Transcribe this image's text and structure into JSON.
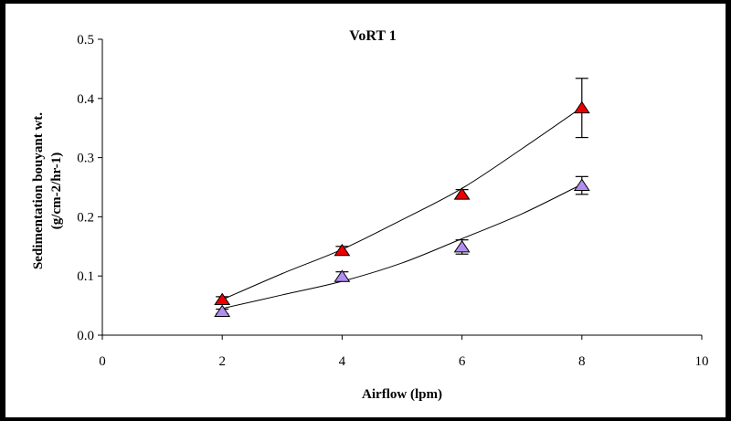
{
  "chart_data": {
    "type": "scatter",
    "title": "VoRT 1",
    "xlabel": "Airflow (lpm)",
    "ylabel_line1": "Sedimentation bouyant wt.",
    "ylabel_line2": "(g/cm-2/hr-1)",
    "xlim": [
      0,
      10
    ],
    "ylim": [
      0,
      0.5
    ],
    "x_ticks": [
      0,
      2,
      4,
      6,
      8,
      10
    ],
    "x_tick_labels": [
      "0",
      "2",
      "4",
      "6",
      "8",
      "10"
    ],
    "y_ticks": [
      0,
      0.1,
      0.2,
      0.3,
      0.4,
      0.5
    ],
    "y_tick_labels": [
      "0.0",
      "0.1",
      "0.2",
      "0.3",
      "0.4",
      "0.5"
    ],
    "grid": false,
    "legend": "none",
    "marker": "triangle",
    "series": [
      {
        "color": "#ee0000",
        "x": [
          2,
          4,
          6,
          8
        ],
        "y": [
          0.06,
          0.143,
          0.238,
          0.384
        ],
        "err": [
          0.005,
          0.007,
          0.008,
          0.05
        ],
        "fit": [
          0.06,
          0.104,
          0.145,
          0.195,
          0.248,
          0.315,
          0.385
        ]
      },
      {
        "color": "#b28ef0",
        "x": [
          2,
          4,
          6,
          8
        ],
        "y": [
          0.04,
          0.099,
          0.149,
          0.253
        ],
        "err": [
          0.004,
          0.008,
          0.012,
          0.015
        ],
        "fit": [
          0.045,
          0.068,
          0.091,
          0.122,
          0.163,
          0.205,
          0.255
        ]
      }
    ],
    "fit_x": [
      2,
      3,
      4,
      5,
      6,
      7,
      8
    ]
  }
}
